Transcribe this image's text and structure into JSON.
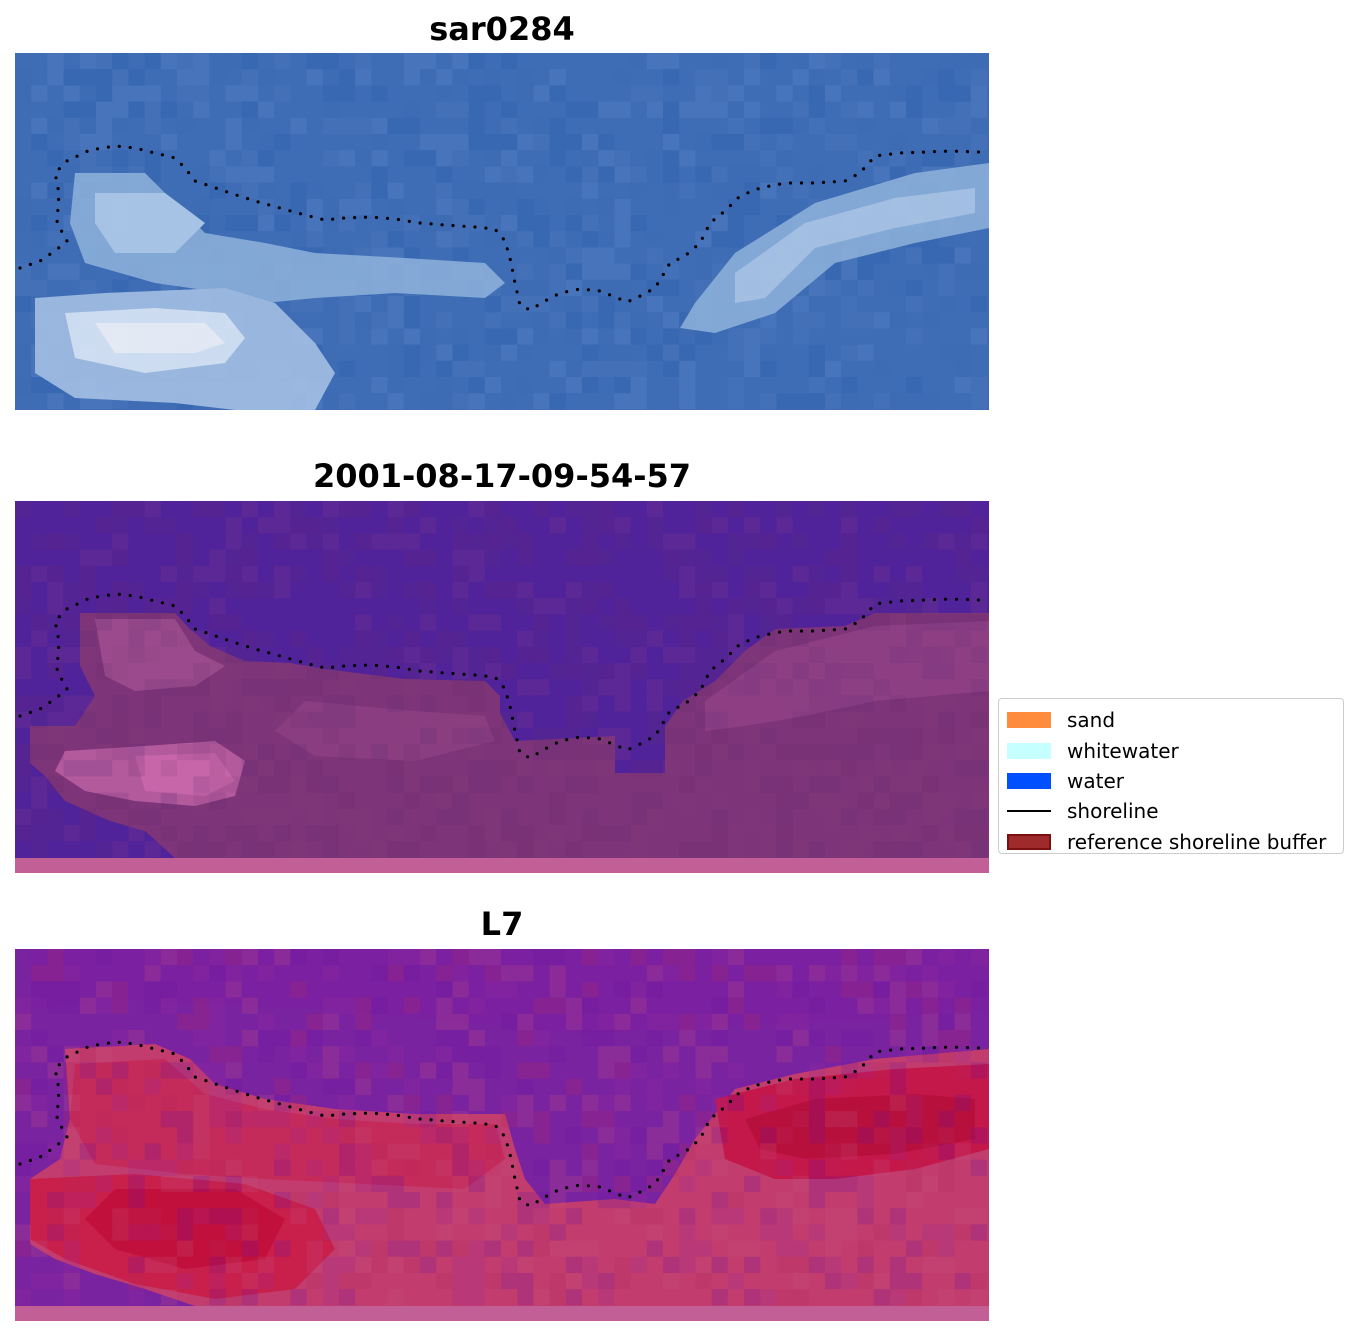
{
  "panels": {
    "rgb": {
      "title": "sar0284"
    },
    "classification": {
      "title": "2001-08-17-09-54-57"
    },
    "mndwi": {
      "title": "L7"
    }
  },
  "legend": {
    "items": [
      {
        "label": "sand",
        "color": "#ff8c3d",
        "kind": "patch"
      },
      {
        "label": "whitewater",
        "color": "#c6ffff",
        "kind": "patch"
      },
      {
        "label": "water",
        "color": "#0050ff",
        "kind": "patch"
      },
      {
        "label": "shoreline",
        "color": "#000000",
        "kind": "line"
      },
      {
        "label": "reference shoreline buffer",
        "color": "#9e2a2b",
        "kind": "patch",
        "edge": "#7a1010"
      }
    ]
  },
  "colors": {
    "rgb_water": "#3f6db5",
    "rgb_whitewater": "#c8dcf0",
    "class_water": "#51239a",
    "class_buffer": "#7d3478",
    "mndwi_water": "#7a23a0",
    "mndwi_land": "#c4254f",
    "buffer_strip": "#c25f96",
    "shoreline_dots": "#000000"
  }
}
